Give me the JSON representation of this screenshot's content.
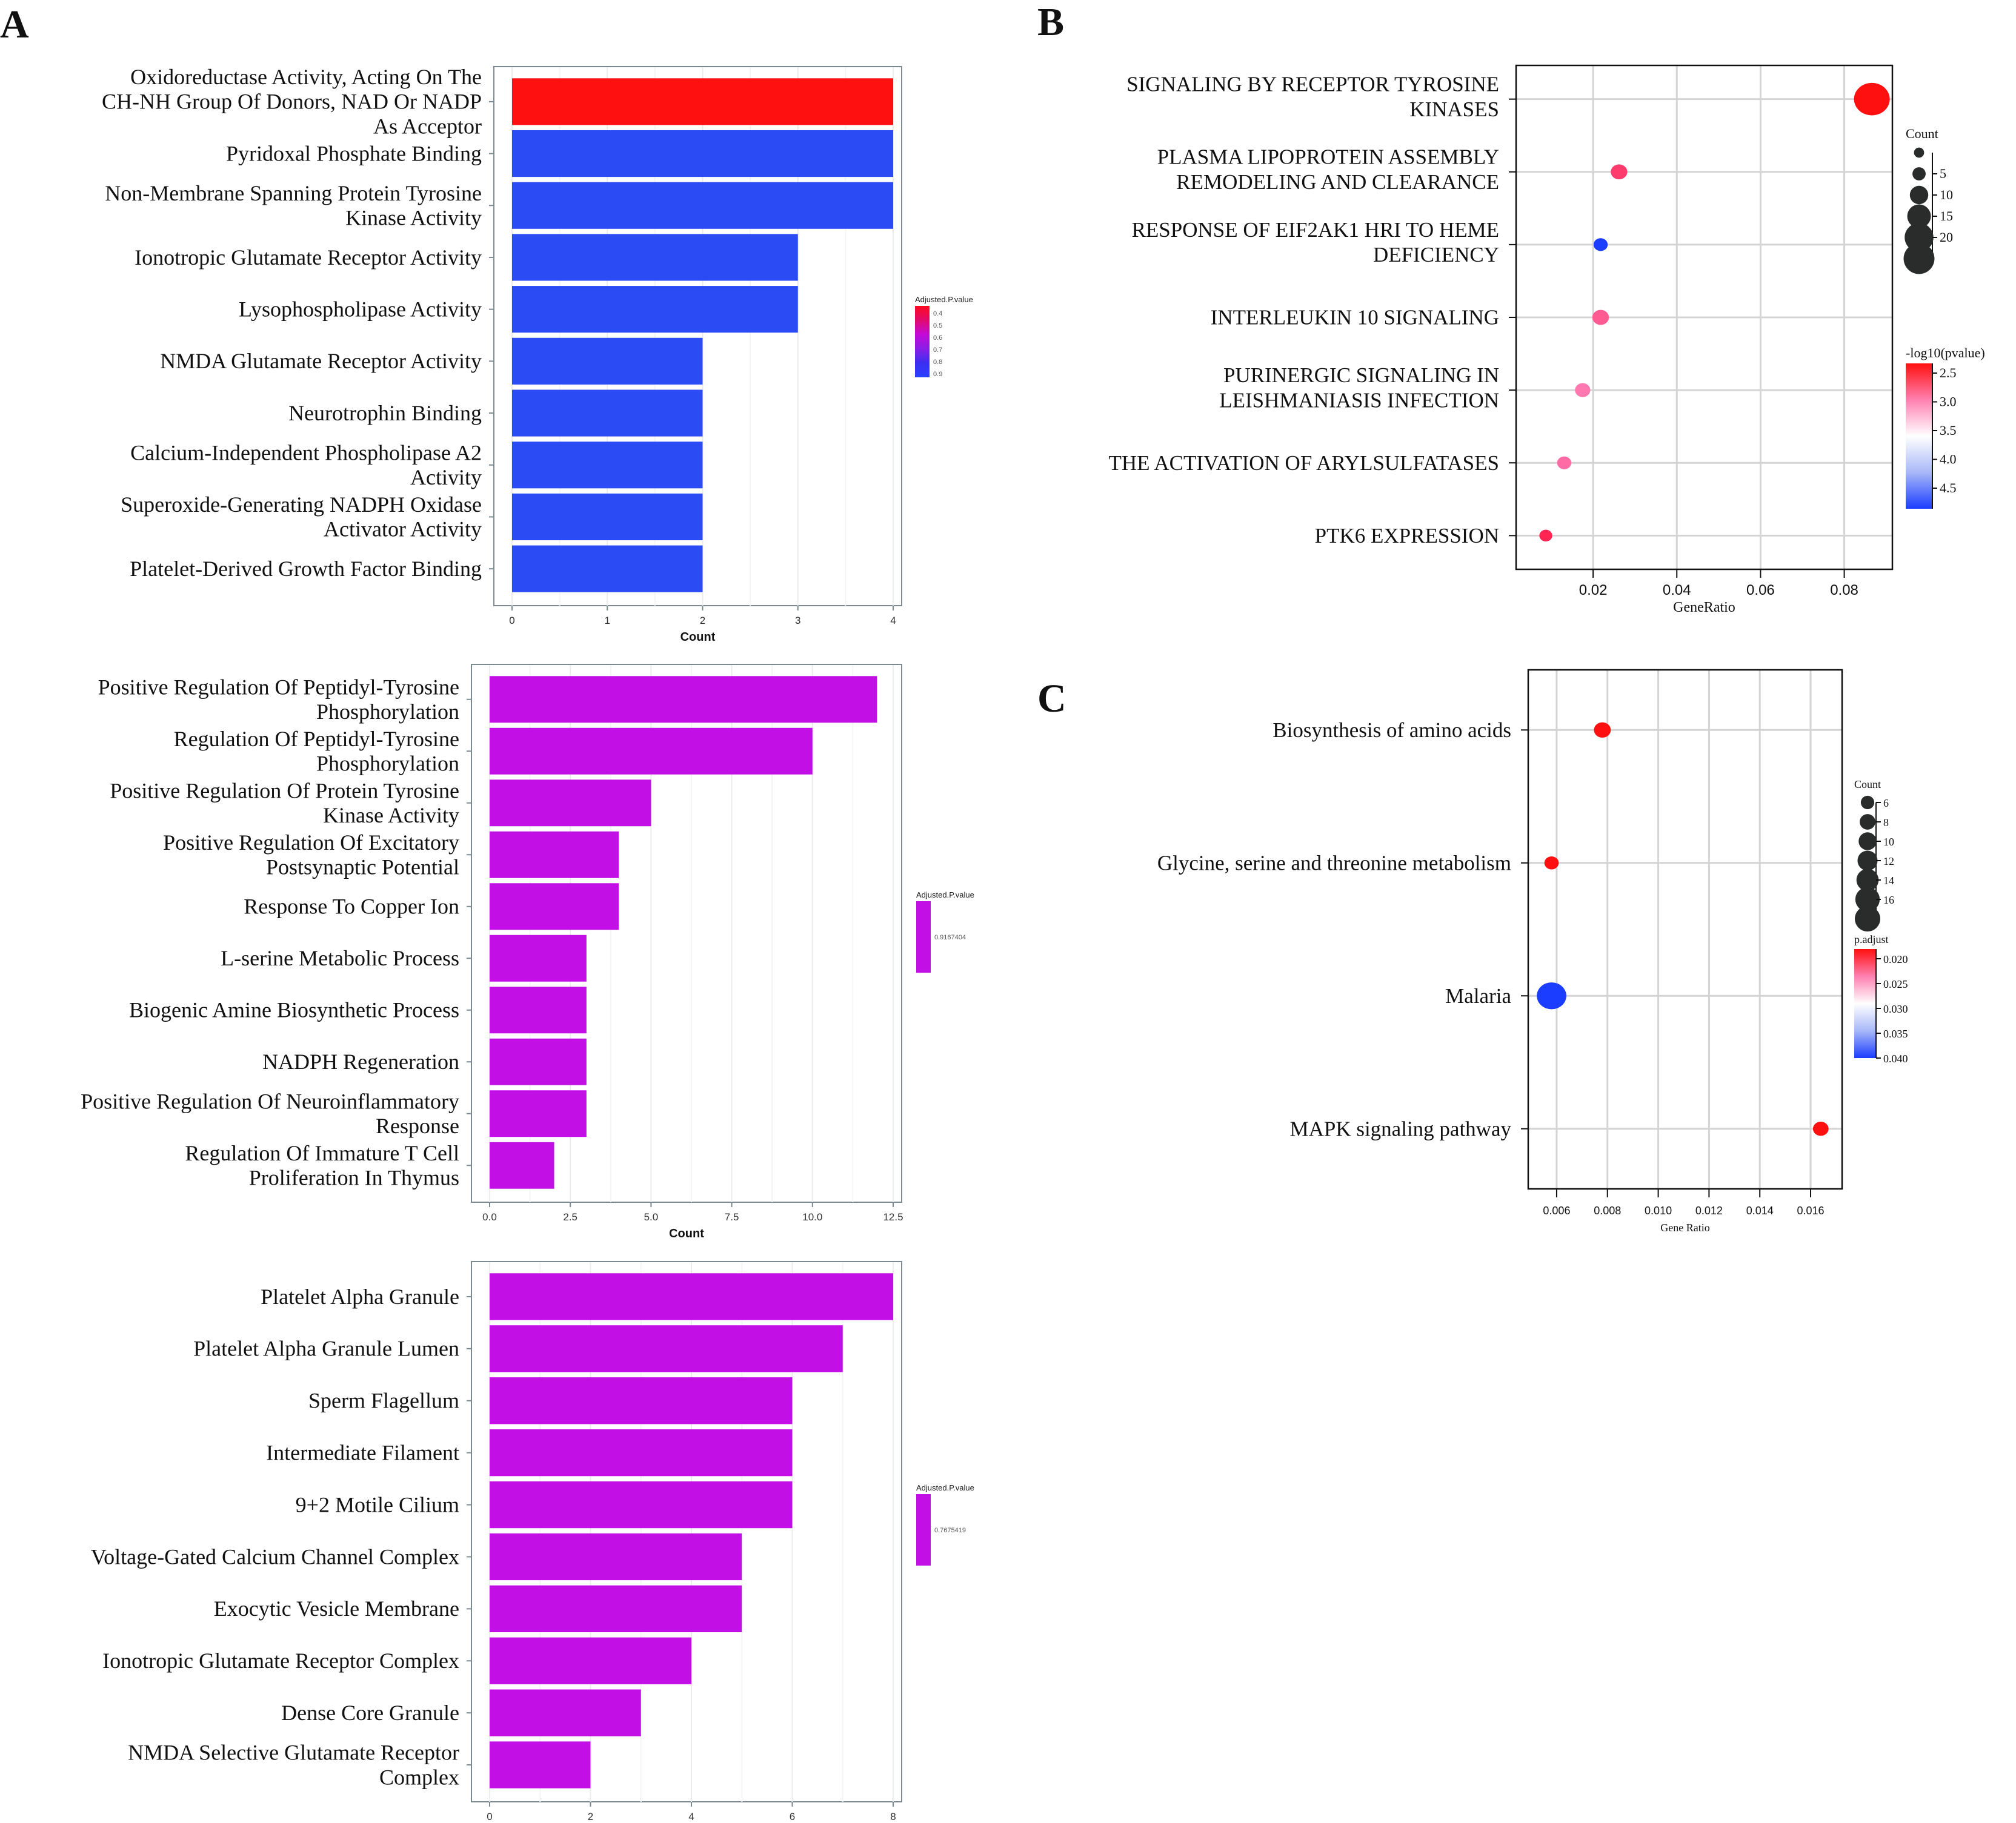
{
  "panel_labels": [
    "A",
    "B",
    "C"
  ],
  "chart_data": [
    {
      "id": "A1",
      "panel": "A",
      "type": "bar",
      "orientation": "horizontal",
      "xlabel": "Count",
      "xticks": [
        "0",
        "1",
        "2",
        "3",
        "4"
      ],
      "xlim": [
        0,
        4
      ],
      "categories": [
        "Oxidoreductase Activity, Acting On The|CH-NH Group Of Donors, NAD Or NADP|As Acceptor",
        "Pyridoxal Phosphate Binding",
        "Non-Membrane Spanning Protein Tyrosine|Kinase Activity",
        "Ionotropic Glutamate Receptor Activity",
        "Lysophospholipase Activity",
        "NMDA Glutamate Receptor Activity",
        "Neurotrophin Binding",
        "Calcium-Independent Phospholipase A2|Activity",
        "Superoxide-Generating NADPH Oxidase|Activator Activity",
        "Platelet-Derived Growth Factor Binding"
      ],
      "values": [
        4,
        4,
        4,
        3,
        3,
        2,
        2,
        2,
        2,
        2
      ],
      "bar_colors": [
        "#ff1010",
        "#2b4cf5",
        "#2b4cf5",
        "#2b4cf5",
        "#2b4cf5",
        "#2b4cf5",
        "#2b4cf5",
        "#2b4cf5",
        "#2b4cf5",
        "#2b4cf5"
      ],
      "legend": {
        "title": "Adjusted.P.value",
        "type": "gradient",
        "ticks": [
          "0.4",
          "0.5",
          "0.6",
          "0.7",
          "0.8",
          "0.9"
        ],
        "colors": [
          "#ff0a1e",
          "#e00a6e",
          "#c40ad8",
          "#8a1ee6",
          "#3b2ef0",
          "#2a40ff"
        ]
      }
    },
    {
      "id": "A2",
      "panel": "A",
      "type": "bar",
      "orientation": "horizontal",
      "xlabel": "Count",
      "xticks": [
        "0.0",
        "2.5",
        "5.0",
        "7.5",
        "10.0",
        "12.5"
      ],
      "xlim": [
        0,
        12.5
      ],
      "categories": [
        "Positive Regulation Of Peptidyl-Tyrosine|Phosphorylation",
        "Regulation Of Peptidyl-Tyrosine|Phosphorylation",
        "Positive Regulation Of Protein Tyrosine|Kinase Activity",
        "Positive Regulation Of Excitatory|Postsynaptic Potential",
        "Response To Copper Ion",
        "L-serine Metabolic Process",
        "Biogenic Amine Biosynthetic Process",
        "NADPH Regeneration",
        "Positive Regulation Of Neuroinflammatory|Response",
        "Regulation Of Immature T Cell|Proliferation In Thymus"
      ],
      "values": [
        12,
        10,
        5,
        4,
        4,
        3,
        3,
        3,
        3,
        2
      ],
      "bar_color": "#c20fe6",
      "legend": {
        "title": "Adjusted.P.value",
        "type": "single",
        "ticks": [
          "0.9167404"
        ],
        "colors": [
          "#c20fe6"
        ]
      }
    },
    {
      "id": "A3",
      "panel": "A",
      "type": "bar",
      "orientation": "horizontal",
      "xlabel": "Count",
      "xticks": [
        "0",
        "2",
        "4",
        "6",
        "8"
      ],
      "xlim": [
        0,
        8
      ],
      "categories": [
        "Platelet Alpha Granule",
        "Platelet Alpha Granule Lumen",
        "Sperm Flagellum",
        "Intermediate Filament",
        "9+2 Motile Cilium",
        "Voltage-Gated Calcium Channel Complex",
        "Exocytic Vesicle Membrane",
        "Ionotropic Glutamate Receptor Complex",
        "Dense Core Granule",
        "NMDA Selective Glutamate Receptor|Complex"
      ],
      "values": [
        8,
        7,
        6,
        6,
        6,
        5,
        5,
        4,
        3,
        2
      ],
      "bar_color": "#c20fe6",
      "legend": {
        "title": "Adjusted.P.value",
        "type": "single",
        "ticks": [
          "0.7675419"
        ],
        "colors": [
          "#c20fe6"
        ]
      }
    },
    {
      "id": "B",
      "panel": "B",
      "type": "scatter",
      "xlabel": "GeneRatio",
      "xticks": [
        "0.02",
        "0.04",
        "0.06",
        "0.08"
      ],
      "xlim": [
        0.0016,
        0.0915
      ],
      "categories": [
        "SIGNALING BY RECEPTOR TYROSINE|KINASES",
        "PLASMA LIPOPROTEIN ASSEMBLY|REMODELING AND CLEARANCE",
        "RESPONSE OF EIF2AK1 HRI TO HEME|DEFICIENCY",
        "INTERLEUKIN 10 SIGNALING",
        "PURINERGIC SIGNALING IN|LEISHMANIASIS INFECTION",
        "THE ACTIVATION OF ARYLSULFATASES",
        "PTK6 EXPRESSION"
      ],
      "points": [
        {
          "x": 0.0866,
          "count": 22,
          "color": "#ff1010"
        },
        {
          "x": 0.0262,
          "count": 6,
          "color": "#ff3b6e"
        },
        {
          "x": 0.0218,
          "count": 4,
          "color": "#1a3dff"
        },
        {
          "x": 0.0218,
          "count": 6,
          "color": "#ff5a92"
        },
        {
          "x": 0.0175,
          "count": 5,
          "color": "#ff78b0"
        },
        {
          "x": 0.0131,
          "count": 4,
          "color": "#ff6ba4"
        },
        {
          "x": 0.0087,
          "count": 3,
          "color": "#ff2452"
        }
      ],
      "size_legend": {
        "title": "Count",
        "ticks": [
          "5",
          "10",
          "15",
          "20"
        ],
        "values": [
          2,
          5,
          10,
          15,
          20,
          22
        ]
      },
      "color_legend": {
        "title": "-log10(pvalue)",
        "ticks": [
          "2.5",
          "3.0",
          "3.5",
          "4.0",
          "4.5"
        ],
        "colors": [
          "#ff1010",
          "#ff80b0",
          "#ffffff",
          "#a8b8f8",
          "#1a3dff"
        ]
      }
    },
    {
      "id": "C",
      "panel": "C",
      "type": "scatter",
      "xlabel": "Gene Ratio",
      "xticks": [
        "0.006",
        "0.008",
        "0.010",
        "0.012",
        "0.014",
        "0.016"
      ],
      "xlim": [
        0.00488,
        0.01724
      ],
      "categories": [
        "Biosynthesis of amino acids",
        "Glycine, serine and threonine metabolism",
        "Malaria",
        "MAPK signaling pathway"
      ],
      "points": [
        {
          "x": 0.0078,
          "count": 7,
          "color": "#ff1010"
        },
        {
          "x": 0.0058,
          "count": 5,
          "color": "#ff1010"
        },
        {
          "x": 0.0058,
          "count": 17,
          "color": "#1a3dff"
        },
        {
          "x": 0.0164,
          "count": 6,
          "color": "#ff1010"
        }
      ],
      "size_legend": {
        "title": "Count",
        "ticks": [
          "6",
          "8",
          "10",
          "12",
          "14",
          "16"
        ],
        "values": [
          6,
          8,
          10,
          12,
          14,
          16,
          17
        ]
      },
      "color_legend": {
        "title": "p.adjust",
        "ticks": [
          "0.020",
          "0.025",
          "0.030",
          "0.035",
          "0.040"
        ],
        "colors": [
          "#ff1010",
          "#ff80b0",
          "#ffffff",
          "#a8b8f8",
          "#1a3dff"
        ]
      }
    }
  ]
}
